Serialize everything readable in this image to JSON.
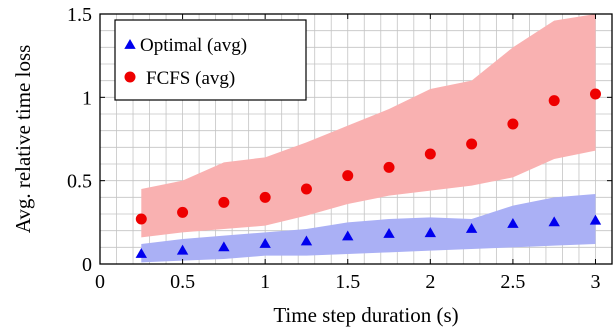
{
  "chart_data": {
    "type": "scatter",
    "title": "",
    "xlabel": "Time step duration (s)",
    "ylabel": "Avg. relative time loss",
    "xlim": [
      0,
      3.1
    ],
    "ylim": [
      0,
      1.5
    ],
    "xticks": [
      0,
      0.5,
      1,
      1.5,
      2,
      2.5,
      3
    ],
    "xtick_labels": [
      "0",
      "0.5",
      "1",
      "1.5",
      "2",
      "2.5",
      "3"
    ],
    "yticks": [
      0,
      0.5,
      1,
      1.5
    ],
    "ytick_labels": [
      "0",
      "0.5",
      "1",
      "1.5"
    ],
    "grid": true,
    "minor_grid_step": {
      "x": 0.1,
      "y": 0.1
    },
    "legend_position": "top-left",
    "x": [
      0.25,
      0.5,
      0.75,
      1.0,
      1.25,
      1.5,
      1.75,
      2.0,
      2.25,
      2.5,
      2.75,
      3.0
    ],
    "series": [
      {
        "name": "Optimal (avg)",
        "marker": "triangle",
        "color": "#0000ee",
        "band_color": "#aab0f5",
        "values": [
          0.06,
          0.08,
          0.1,
          0.12,
          0.135,
          0.165,
          0.18,
          0.185,
          0.21,
          0.24,
          0.25,
          0.26
        ],
        "band_upper": [
          0.12,
          0.15,
          0.17,
          0.19,
          0.21,
          0.25,
          0.27,
          0.28,
          0.27,
          0.35,
          0.4,
          0.42
        ],
        "band_lower": [
          0.01,
          0.02,
          0.03,
          0.05,
          0.05,
          0.06,
          0.07,
          0.08,
          0.09,
          0.1,
          0.11,
          0.12
        ]
      },
      {
        "name": "FCFS (avg)",
        "marker": "circle",
        "color": "#ee0000",
        "band_color": "#f9b1b1",
        "values": [
          0.27,
          0.31,
          0.37,
          0.4,
          0.45,
          0.53,
          0.58,
          0.66,
          0.72,
          0.84,
          0.98,
          1.02
        ],
        "band_upper": [
          0.45,
          0.5,
          0.61,
          0.64,
          0.73,
          0.83,
          0.93,
          1.05,
          1.1,
          1.3,
          1.46,
          1.5
        ],
        "band_lower": [
          0.16,
          0.19,
          0.21,
          0.23,
          0.29,
          0.36,
          0.41,
          0.44,
          0.47,
          0.52,
          0.63,
          0.68
        ]
      }
    ]
  }
}
